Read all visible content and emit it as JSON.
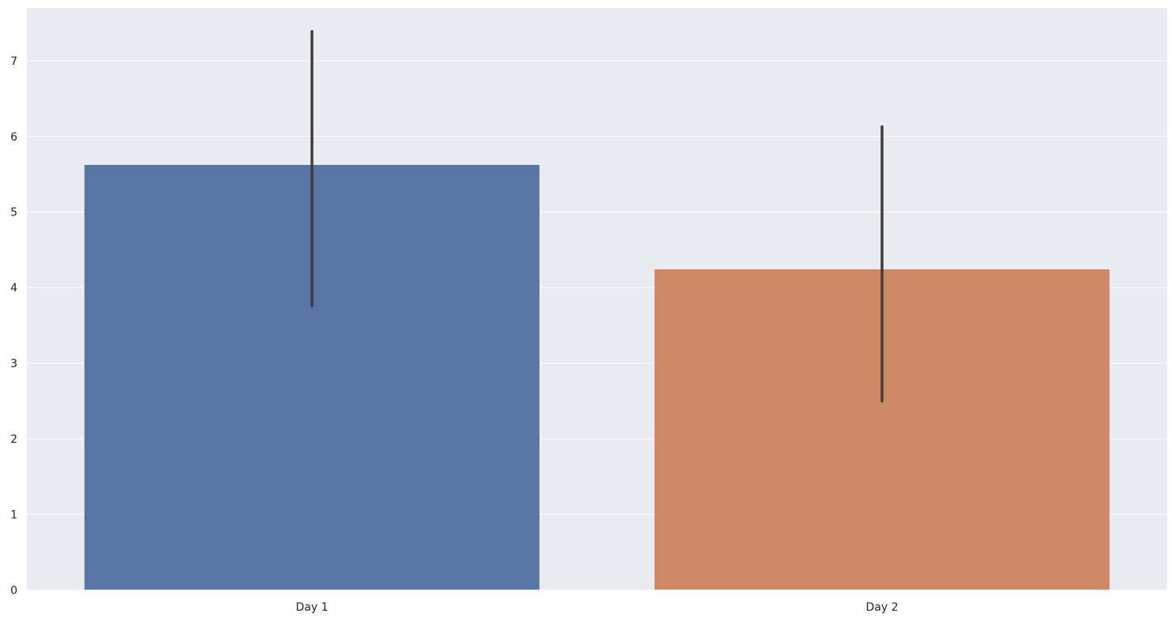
{
  "chart_data": {
    "type": "bar",
    "title": "",
    "xlabel": "",
    "ylabel": "",
    "categories": [
      "Day 1",
      "Day 2"
    ],
    "values": [
      5.63,
      4.25
    ],
    "error_bars": [
      {
        "low": 3.76,
        "high": 7.39
      },
      {
        "low": 2.5,
        "high": 6.13
      }
    ],
    "ylim": [
      0,
      7.7
    ],
    "yticks": [
      0,
      1,
      2,
      3,
      4,
      5,
      6,
      7
    ],
    "grid": true,
    "legend": "none",
    "colors": {
      "background": "#eaeaf2",
      "grid": "#ffffff",
      "bars": [
        "#5975a4",
        "#cc8963"
      ],
      "error_bar": "#3f3f3f",
      "text": "#262626"
    }
  }
}
